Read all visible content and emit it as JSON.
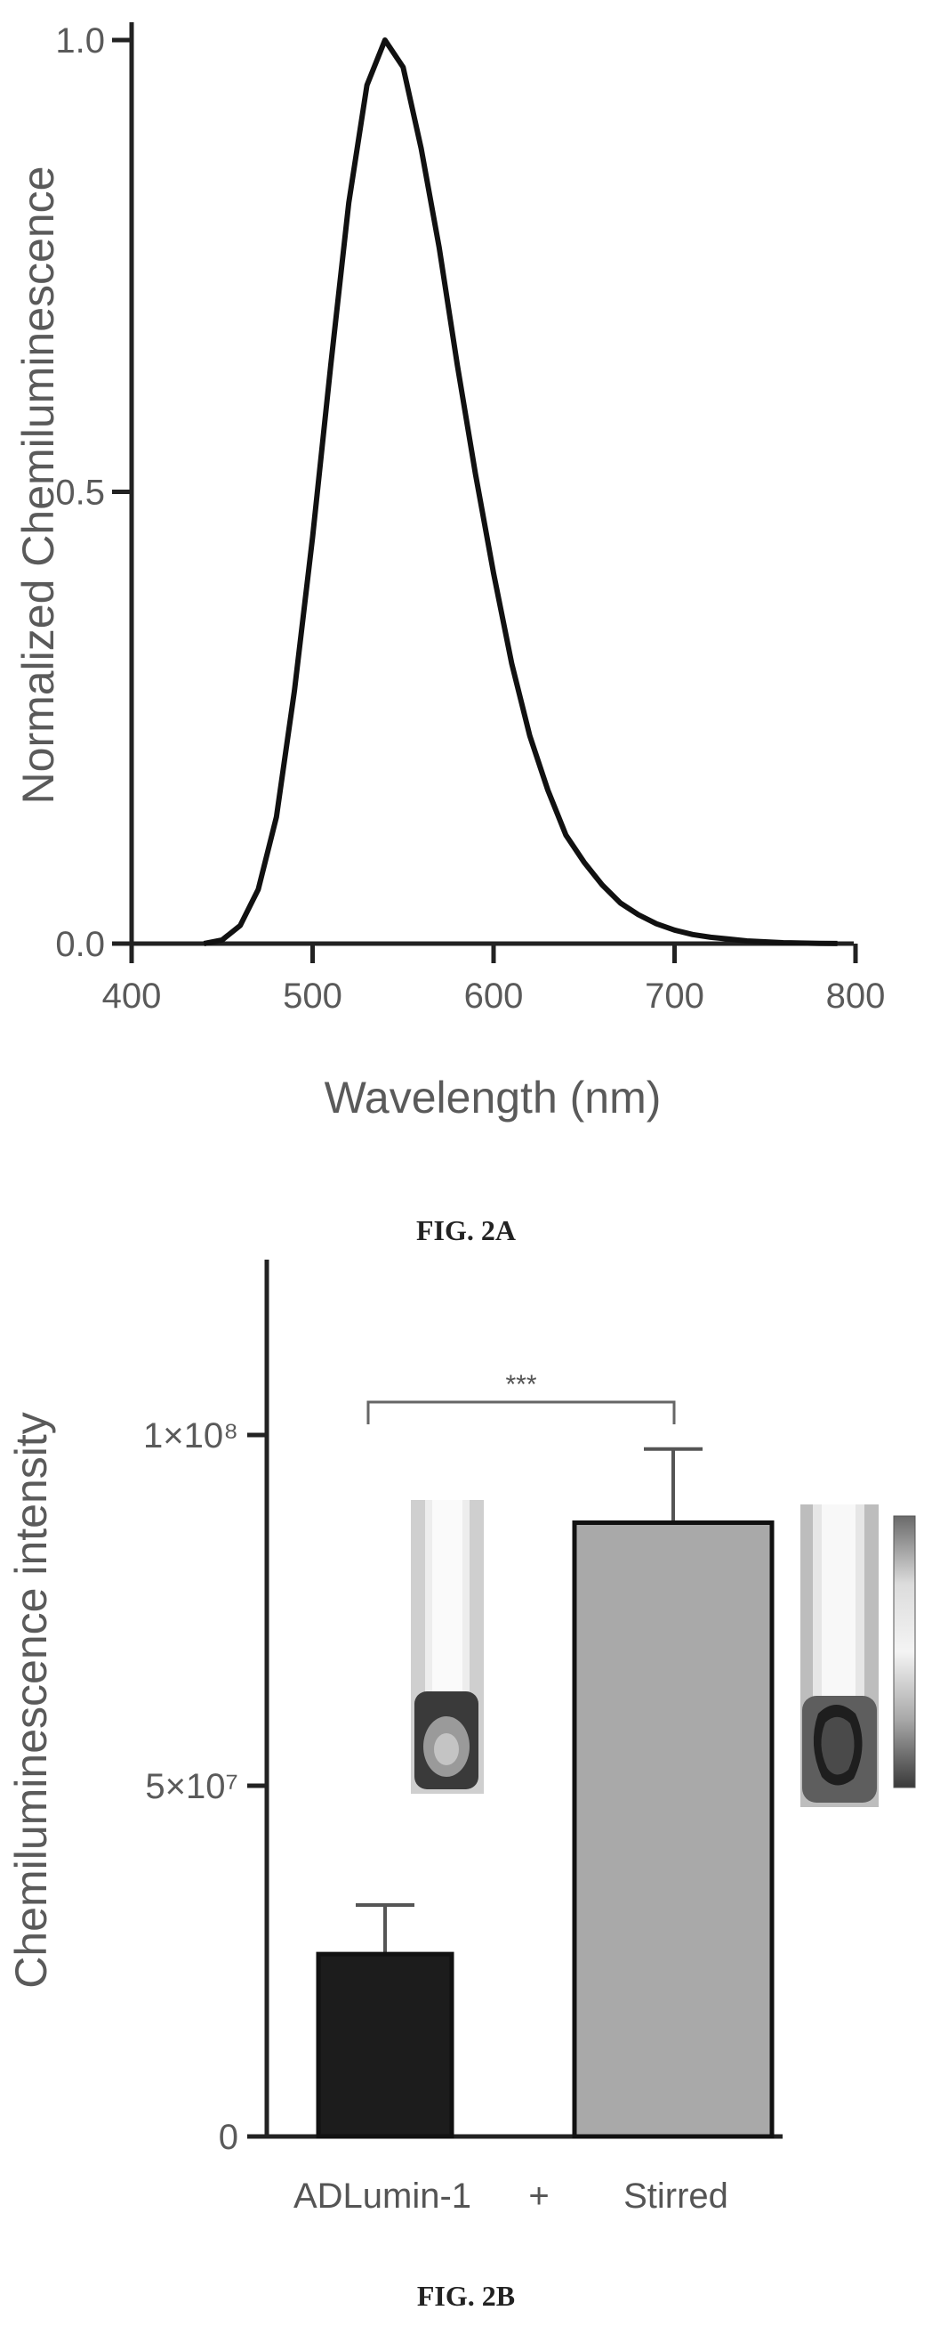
{
  "chart_data": [
    {
      "type": "line",
      "caption": "FIG. 2A",
      "xlabel": "Wavelength (nm)",
      "ylabel": "Normalized Chemiluminescence",
      "xlim": [
        400,
        800
      ],
      "ylim": [
        0,
        1
      ],
      "xticks": [
        400,
        500,
        600,
        700,
        800
      ],
      "xtick_labels": [
        "400",
        "500",
        "600",
        "700",
        "800"
      ],
      "yticks": [
        0,
        0.5,
        1
      ],
      "ytick_labels": [
        "0.0",
        "0.5",
        "1.0"
      ],
      "grid": false,
      "series": [
        {
          "x": [
            440,
            450,
            460,
            470,
            480,
            490,
            500,
            510,
            520,
            530,
            540,
            550,
            560,
            570,
            580,
            590,
            600,
            610,
            620,
            630,
            640,
            650,
            660,
            670,
            680,
            690,
            700,
            710,
            720,
            730,
            740,
            750,
            760,
            770,
            780,
            790
          ],
          "y": [
            0.0,
            0.004,
            0.02,
            0.06,
            0.14,
            0.28,
            0.45,
            0.64,
            0.82,
            0.95,
            1.0,
            0.97,
            0.88,
            0.77,
            0.64,
            0.52,
            0.41,
            0.31,
            0.23,
            0.17,
            0.12,
            0.09,
            0.065,
            0.045,
            0.032,
            0.022,
            0.015,
            0.01,
            0.007,
            0.005,
            0.003,
            0.002,
            0.001,
            0.0006,
            0.0003,
            0.0001
          ],
          "color": "#111111"
        }
      ]
    },
    {
      "type": "bar",
      "caption": "FIG. 2B",
      "xlabel": "",
      "ylabel": "Chemiluminescence intensity",
      "ylim": [
        0,
        125000000
      ],
      "yticks": [
        0,
        50000000,
        100000000
      ],
      "ytick_labels": [
        "0",
        "5×10⁷",
        "1×10⁸"
      ],
      "categories": [
        "ADLumin-1",
        "+",
        "Stirred"
      ],
      "bars": [
        {
          "label": "ADLumin-1",
          "value": 26000000,
          "error": 7000000,
          "color": "#1c1c1c"
        },
        {
          "label": "Stirred",
          "value": 87500000,
          "error": 10500000,
          "color": "#a9a9a9"
        }
      ],
      "significance": "***",
      "grid": false
    }
  ]
}
